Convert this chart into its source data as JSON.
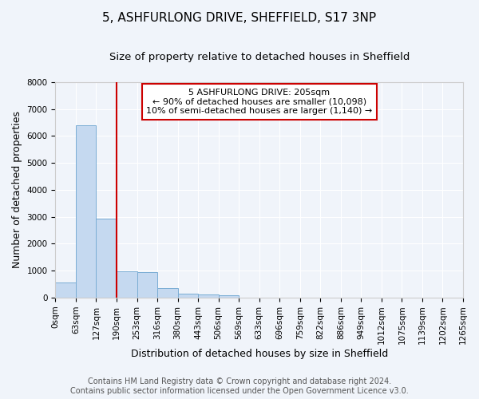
{
  "title": "5, ASHFURLONG DRIVE, SHEFFIELD, S17 3NP",
  "subtitle": "Size of property relative to detached houses in Sheffield",
  "xlabel": "Distribution of detached houses by size in Sheffield",
  "ylabel": "Number of detached properties",
  "footer_line1": "Contains HM Land Registry data © Crown copyright and database right 2024.",
  "footer_line2": "Contains public sector information licensed under the Open Government Licence v3.0.",
  "bar_values": [
    550,
    6380,
    2920,
    980,
    960,
    340,
    155,
    115,
    80,
    0,
    0,
    0,
    0,
    0,
    0,
    0,
    0,
    0,
    0,
    0
  ],
  "bin_labels": [
    "0sqm",
    "63sqm",
    "127sqm",
    "190sqm",
    "253sqm",
    "316sqm",
    "380sqm",
    "443sqm",
    "506sqm",
    "569sqm",
    "633sqm",
    "696sqm",
    "759sqm",
    "822sqm",
    "886sqm",
    "949sqm",
    "1012sqm",
    "1075sqm",
    "1139sqm",
    "1202sqm",
    "1265sqm"
  ],
  "bar_color": "#c5d9f0",
  "bar_edge_color": "#7aadd4",
  "vline_color": "#cc0000",
  "vline_x": 3,
  "annotation_text": "5 ASHFURLONG DRIVE: 205sqm\n← 90% of detached houses are smaller (10,098)\n10% of semi-detached houses are larger (1,140) →",
  "annotation_box_color": "#ffffff",
  "annotation_box_edge_color": "#cc0000",
  "ylim": [
    0,
    8000
  ],
  "yticks": [
    0,
    1000,
    2000,
    3000,
    4000,
    5000,
    6000,
    7000,
    8000
  ],
  "background_color": "#f0f4fa",
  "axes_background": "#f0f4fa",
  "grid_color": "#ffffff",
  "title_fontsize": 11,
  "subtitle_fontsize": 9.5,
  "label_fontsize": 9,
  "tick_fontsize": 7.5,
  "footer_fontsize": 7,
  "annotation_fontsize": 8
}
